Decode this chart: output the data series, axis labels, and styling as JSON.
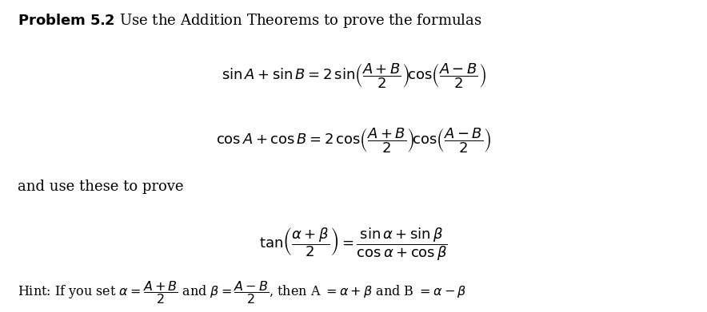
{
  "background_color": "#ffffff",
  "fig_width": 8.84,
  "fig_height": 3.91,
  "title_bold": "Problem 5.2",
  "title_normal": " Use the Addition Theorems to prove the formulas",
  "formula1": "$\\sin A + \\sin B = 2\\,\\sin\\!\\left(\\dfrac{A+B}{2}\\right)\\!\\cos\\!\\left(\\dfrac{A-B}{2}\\right)$",
  "formula2": "$\\cos A + \\cos B = 2\\,\\cos\\!\\left(\\dfrac{A+B}{2}\\right)\\!\\cos\\!\\left(\\dfrac{A-B}{2}\\right)$",
  "middle_text": "and use these to prove",
  "formula3": "$\\tan\\!\\left(\\dfrac{\\alpha+\\beta}{2}\\right) = \\dfrac{\\sin\\alpha+\\sin\\beta}{\\cos\\alpha+\\cos\\beta}$",
  "hint_text_plain": "Hint: If you set ",
  "hint_alpha": "$\\alpha = \\dfrac{A+B}{2}$",
  "hint_and": " and ",
  "hint_beta": "$\\beta = \\dfrac{A-B}{2}$",
  "hint_then": ", then A = ",
  "hint_alpha2": "$\\alpha + \\beta$",
  "hint_and2": " and B = ",
  "hint_beta2": "$\\alpha - \\beta$",
  "font_size_main": 13,
  "font_size_formula": 13,
  "font_size_hint": 11.5
}
